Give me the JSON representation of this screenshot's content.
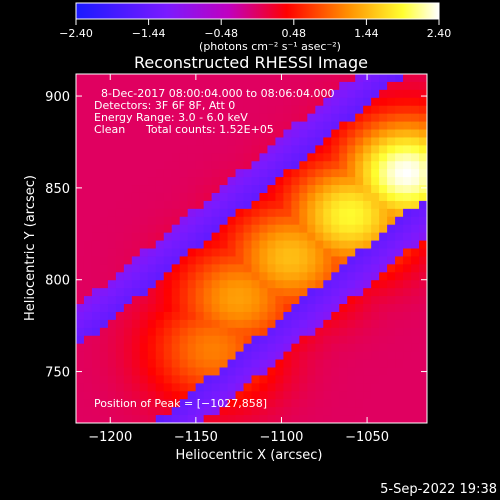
{
  "chart_data": {
    "type": "heatmap",
    "title": "Reconstructed RHESSI Image",
    "xlabel": "Heliocentric X (arcsec)",
    "ylabel": "Heliocentric Y (arcsec)",
    "xlim": [
      -1220,
      -1015
    ],
    "ylim": [
      722,
      912
    ],
    "x_ticks": [
      -1200,
      -1150,
      -1100,
      -1050
    ],
    "x_tick_labels": [
      "−1200",
      "−1150",
      "−1100",
      "−1050"
    ],
    "y_ticks": [
      750,
      800,
      850,
      900
    ],
    "y_tick_labels": [
      "750",
      "800",
      "850",
      "900"
    ],
    "colorbar": {
      "range": [
        -2.4,
        2.4
      ],
      "ticks": [
        -2.4,
        -1.44,
        -0.48,
        0.48,
        1.44,
        2.4
      ],
      "tick_labels": [
        "−2.40",
        "−1.44",
        "−0.48",
        "0.48",
        "1.44",
        "2.40"
      ],
      "units": "(photons cm⁻² s⁻¹ asec⁻²)",
      "colormap": [
        "#1a1aff",
        "#7a1aff",
        "#c000c0",
        "#ff0000",
        "#ff9000",
        "#ffff30",
        "#ffffff"
      ]
    },
    "peak": {
      "x": -1027,
      "y": 858,
      "value": 2.4
    },
    "source_sketch": [
      {
        "x": -1027,
        "y": 858,
        "value": 2.4
      },
      {
        "x": -1060,
        "y": 835,
        "value": 1.9
      },
      {
        "x": -1095,
        "y": 812,
        "value": 1.5
      },
      {
        "x": -1125,
        "y": 790,
        "value": 1.3
      },
      {
        "x": -1140,
        "y": 762,
        "value": 1.1
      }
    ]
  },
  "annotations": {
    "time_range": "8-Dec-2017 08:00:04.000 to 08:06:04.000",
    "detectors": "Detectors: 3F 6F 8F, Att 0",
    "energy": "Energy Range: 3.0 - 6.0 keV",
    "method": "Clean",
    "total_counts": "Total counts: 1.52E+05",
    "peak_position": "Position of Peak = [−1027,858]"
  },
  "footer": {
    "date": "5-Sep-2022 19:38"
  }
}
